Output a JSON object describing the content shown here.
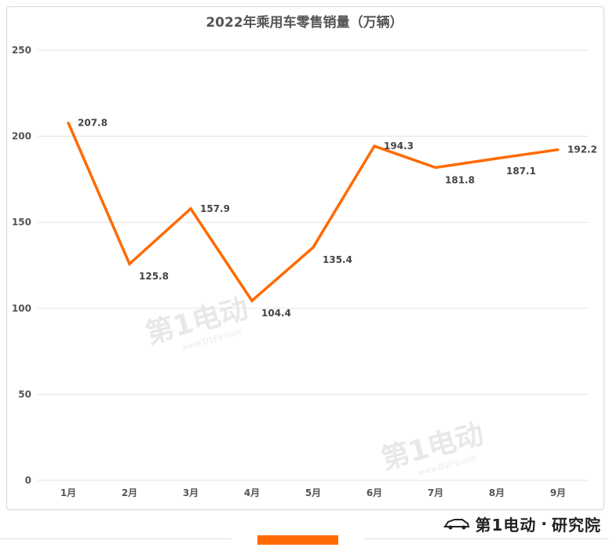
{
  "chart_data": {
    "type": "line",
    "title": "2022年乘用车零售销量（万辆）",
    "categories": [
      "1月",
      "2月",
      "3月",
      "4月",
      "5月",
      "6月",
      "7月",
      "8月",
      "9月"
    ],
    "series": [
      {
        "values": [
          207.8,
          125.8,
          157.9,
          104.4,
          135.4,
          194.3,
          181.8,
          187.1,
          192.2
        ]
      }
    ],
    "ylim": [
      0,
      250
    ],
    "yticks": [
      0,
      50,
      100,
      150,
      200,
      250
    ],
    "grid": true,
    "line_color": "#ff6a00"
  },
  "watermark": {
    "text": "第1电动",
    "url": "www.D1EV.com"
  },
  "brand": {
    "left": "第1电动",
    "right": "研究院"
  },
  "colors": {
    "accent": "#ff6a00",
    "grid": "#e3e3e3",
    "text": "#555555"
  }
}
